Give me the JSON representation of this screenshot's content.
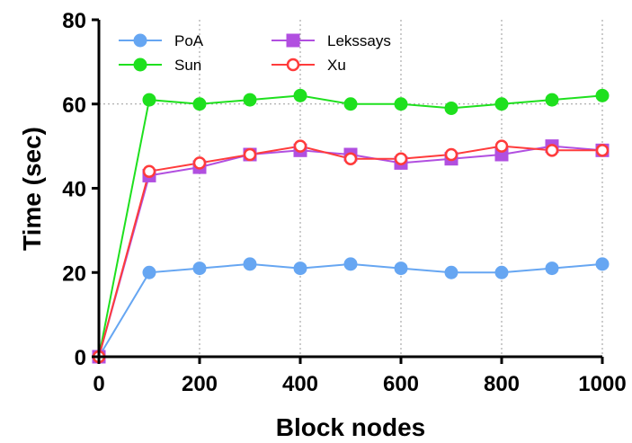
{
  "chart_data": {
    "type": "line",
    "xlabel": "Block nodes",
    "ylabel": "Time (sec)",
    "xlim": [
      0,
      1000
    ],
    "ylim": [
      0,
      80
    ],
    "x_ticks": [
      "0",
      "200",
      "400",
      "600",
      "800",
      "1000"
    ],
    "y_ticks": [
      "0",
      "20",
      "40",
      "60",
      "80"
    ],
    "grid": "vertical dotted lines at x-ticks, horizontal dotted line at y=60",
    "legend_position": "top-left",
    "x": [
      0,
      100,
      200,
      300,
      400,
      500,
      600,
      700,
      800,
      900,
      1000
    ],
    "series": [
      {
        "name": "PoA",
        "color": "#66a6f2",
        "line_color": "#66a6f2",
        "marker": "circle",
        "filled": true,
        "values": [
          0,
          20,
          21,
          22,
          21,
          22,
          21,
          20,
          20,
          21,
          22
        ]
      },
      {
        "name": "Sun",
        "color": "#1ee01e",
        "line_color": "#1ee01e",
        "marker": "circle",
        "filled": true,
        "values": [
          0,
          61,
          60,
          61,
          62,
          60,
          60,
          59,
          60,
          61,
          62
        ]
      },
      {
        "name": "Lekssays",
        "color": "#b14fe0",
        "line_color": "#b14fe0",
        "marker": "square",
        "filled": true,
        "values": [
          0,
          43,
          45,
          48,
          49,
          48,
          46,
          47,
          48,
          50,
          49
        ]
      },
      {
        "name": "Xu",
        "color": "#ff3b3b",
        "line_color": "#ff3b3b",
        "marker": "circle",
        "filled": false,
        "values": [
          0,
          44,
          46,
          48,
          50,
          47,
          47,
          48,
          50,
          49,
          49
        ]
      }
    ]
  }
}
